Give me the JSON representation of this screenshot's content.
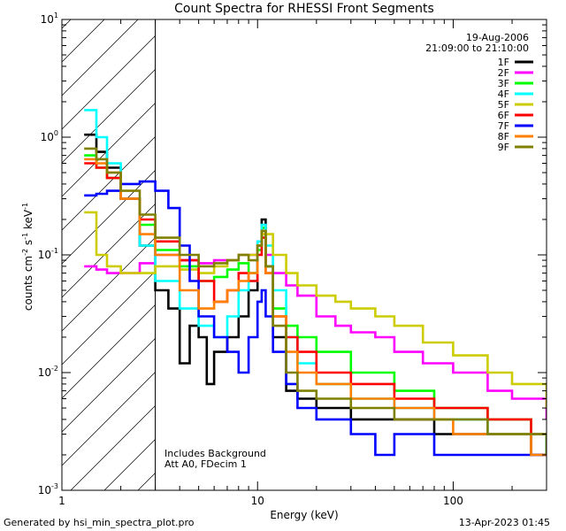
{
  "chart_data": {
    "type": "line",
    "title": "Count Spectra for RHESSI Front Segments",
    "xlabel": "Energy (keV)",
    "ylabel_base": "counts cm",
    "ylabel_exp1": "-2",
    "ylabel_mid1": " s",
    "ylabel_exp2": "-1",
    "ylabel_mid2": " keV",
    "ylabel_exp3": "-1",
    "x_scale": "log",
    "y_scale": "log",
    "xlim": [
      1,
      300
    ],
    "ylim": [
      0.001,
      10
    ],
    "x_ticks": [
      {
        "value": 1,
        "label": "1"
      },
      {
        "value": 10,
        "label": "10"
      },
      {
        "value": 100,
        "label": "100"
      }
    ],
    "y_ticks": [
      {
        "value": 10,
        "base": "10",
        "exp": "1"
      },
      {
        "value": 1,
        "base": "10",
        "exp": "0"
      },
      {
        "value": 0.1,
        "base": "10",
        "exp": "-1"
      },
      {
        "value": 0.01,
        "base": "10",
        "exp": "-2"
      },
      {
        "value": 0.001,
        "base": "10",
        "exp": "-3"
      }
    ],
    "hatched_region": {
      "from": 1,
      "to": 3
    },
    "date": "19-Aug-2006",
    "time_range": "21:09:00 to 21:10:00",
    "annotation_1": "Includes Background",
    "annotation_2": "Att A0, FDecim 1",
    "legend_placement": "top-right",
    "series": [
      {
        "name": "1F",
        "color": "#000000",
        "points": [
          [
            1.3,
            1.05
          ],
          [
            1.5,
            0.75
          ],
          [
            1.7,
            0.55
          ],
          [
            2.0,
            0.3
          ],
          [
            2.5,
            0.12
          ],
          [
            3.0,
            0.05
          ],
          [
            3.5,
            0.035
          ],
          [
            4.0,
            0.012
          ],
          [
            4.5,
            0.025
          ],
          [
            5.0,
            0.02
          ],
          [
            5.5,
            0.008
          ],
          [
            6.0,
            0.015
          ],
          [
            7.0,
            0.02
          ],
          [
            8.0,
            0.03
          ],
          [
            9.0,
            0.05
          ],
          [
            10.0,
            0.12
          ],
          [
            10.5,
            0.2
          ],
          [
            11.0,
            0.08
          ],
          [
            12.0,
            0.02
          ],
          [
            14.0,
            0.007
          ],
          [
            16.0,
            0.006
          ],
          [
            20.0,
            0.005
          ],
          [
            30.0,
            0.004
          ],
          [
            50.0,
            0.004
          ],
          [
            80.0,
            0.003
          ],
          [
            150.0,
            0.003
          ],
          [
            250.0,
            0.002
          ],
          [
            300.0,
            0.002
          ]
        ]
      },
      {
        "name": "2F",
        "color": "#ff00ff",
        "points": [
          [
            1.3,
            0.08
          ],
          [
            1.5,
            0.075
          ],
          [
            1.7,
            0.07
          ],
          [
            2.0,
            0.07
          ],
          [
            2.5,
            0.085
          ],
          [
            3.0,
            0.1
          ],
          [
            4.0,
            0.09
          ],
          [
            5.0,
            0.085
          ],
          [
            6.0,
            0.09
          ],
          [
            7.0,
            0.09
          ],
          [
            8.0,
            0.1
          ],
          [
            9.0,
            0.1
          ],
          [
            10.0,
            0.13
          ],
          [
            10.5,
            0.17
          ],
          [
            11.0,
            0.1
          ],
          [
            12.0,
            0.07
          ],
          [
            14.0,
            0.055
          ],
          [
            16.0,
            0.045
          ],
          [
            20.0,
            0.03
          ],
          [
            25.0,
            0.025
          ],
          [
            30.0,
            0.022
          ],
          [
            40.0,
            0.02
          ],
          [
            50.0,
            0.015
          ],
          [
            70.0,
            0.012
          ],
          [
            100.0,
            0.01
          ],
          [
            150.0,
            0.007
          ],
          [
            200.0,
            0.006
          ],
          [
            300.0,
            0.004
          ]
        ]
      },
      {
        "name": "3F",
        "color": "#00ff00",
        "points": [
          [
            1.3,
            0.7
          ],
          [
            1.5,
            0.55
          ],
          [
            1.7,
            0.45
          ],
          [
            2.0,
            0.3
          ],
          [
            2.5,
            0.18
          ],
          [
            3.0,
            0.11
          ],
          [
            4.0,
            0.08
          ],
          [
            5.0,
            0.06
          ],
          [
            6.0,
            0.065
          ],
          [
            7.0,
            0.075
          ],
          [
            8.0,
            0.085
          ],
          [
            9.0,
            0.07
          ],
          [
            10.0,
            0.11
          ],
          [
            10.5,
            0.17
          ],
          [
            11.0,
            0.08
          ],
          [
            12.0,
            0.035
          ],
          [
            14.0,
            0.025
          ],
          [
            16.0,
            0.02
          ],
          [
            20.0,
            0.015
          ],
          [
            30.0,
            0.01
          ],
          [
            50.0,
            0.007
          ],
          [
            80.0,
            0.005
          ],
          [
            150.0,
            0.004
          ],
          [
            250.0,
            0.003
          ],
          [
            300.0,
            0.002
          ]
        ]
      },
      {
        "name": "4F",
        "color": "#00ffff",
        "points": [
          [
            1.3,
            1.7
          ],
          [
            1.5,
            1.0
          ],
          [
            1.7,
            0.6
          ],
          [
            2.0,
            0.3
          ],
          [
            2.5,
            0.12
          ],
          [
            3.0,
            0.06
          ],
          [
            4.0,
            0.035
          ],
          [
            5.0,
            0.025
          ],
          [
            6.0,
            0.02
          ],
          [
            7.0,
            0.03
          ],
          [
            8.0,
            0.05
          ],
          [
            9.0,
            0.06
          ],
          [
            10.0,
            0.13
          ],
          [
            10.5,
            0.18
          ],
          [
            11.0,
            0.12
          ],
          [
            12.0,
            0.05
          ],
          [
            14.0,
            0.02
          ],
          [
            16.0,
            0.012
          ],
          [
            20.0,
            0.008
          ],
          [
            30.0,
            0.006
          ],
          [
            50.0,
            0.005
          ],
          [
            80.0,
            0.004
          ],
          [
            150.0,
            0.003
          ],
          [
            300.0,
            0.002
          ]
        ]
      },
      {
        "name": "5F",
        "color": "#cccc00",
        "points": [
          [
            1.3,
            0.23
          ],
          [
            1.5,
            0.1
          ],
          [
            1.7,
            0.08
          ],
          [
            2.0,
            0.07
          ],
          [
            2.5,
            0.07
          ],
          [
            3.0,
            0.08
          ],
          [
            4.0,
            0.075
          ],
          [
            5.0,
            0.07
          ],
          [
            6.0,
            0.08
          ],
          [
            7.0,
            0.09
          ],
          [
            8.0,
            0.1
          ],
          [
            9.0,
            0.1
          ],
          [
            10.0,
            0.12
          ],
          [
            10.5,
            0.15
          ],
          [
            11.0,
            0.15
          ],
          [
            12.0,
            0.1
          ],
          [
            14.0,
            0.07
          ],
          [
            16.0,
            0.055
          ],
          [
            20.0,
            0.045
          ],
          [
            25.0,
            0.04
          ],
          [
            30.0,
            0.035
          ],
          [
            40.0,
            0.03
          ],
          [
            50.0,
            0.025
          ],
          [
            70.0,
            0.018
          ],
          [
            100.0,
            0.014
          ],
          [
            150.0,
            0.01
          ],
          [
            200.0,
            0.008
          ],
          [
            300.0,
            0.005
          ]
        ]
      },
      {
        "name": "6F",
        "color": "#ff0000",
        "points": [
          [
            1.3,
            0.6
          ],
          [
            1.5,
            0.55
          ],
          [
            1.7,
            0.45
          ],
          [
            2.0,
            0.3
          ],
          [
            2.5,
            0.2
          ],
          [
            3.0,
            0.13
          ],
          [
            4.0,
            0.09
          ],
          [
            5.0,
            0.06
          ],
          [
            6.0,
            0.04
          ],
          [
            7.0,
            0.05
          ],
          [
            8.0,
            0.07
          ],
          [
            9.0,
            0.06
          ],
          [
            10.0,
            0.1
          ],
          [
            10.5,
            0.14
          ],
          [
            11.0,
            0.07
          ],
          [
            12.0,
            0.03
          ],
          [
            14.0,
            0.02
          ],
          [
            16.0,
            0.015
          ],
          [
            20.0,
            0.01
          ],
          [
            30.0,
            0.008
          ],
          [
            50.0,
            0.006
          ],
          [
            80.0,
            0.005
          ],
          [
            150.0,
            0.004
          ],
          [
            250.0,
            0.003
          ],
          [
            300.0,
            0.003
          ]
        ]
      },
      {
        "name": "7F",
        "color": "#0000ff",
        "points": [
          [
            1.3,
            0.32
          ],
          [
            1.5,
            0.33
          ],
          [
            1.7,
            0.35
          ],
          [
            2.0,
            0.4
          ],
          [
            2.5,
            0.42
          ],
          [
            3.0,
            0.35
          ],
          [
            3.5,
            0.25
          ],
          [
            4.0,
            0.12
          ],
          [
            4.5,
            0.06
          ],
          [
            5.0,
            0.03
          ],
          [
            6.0,
            0.02
          ],
          [
            7.0,
            0.015
          ],
          [
            8.0,
            0.01
          ],
          [
            9.0,
            0.02
          ],
          [
            10.0,
            0.04
          ],
          [
            10.5,
            0.05
          ],
          [
            11.0,
            0.03
          ],
          [
            12.0,
            0.015
          ],
          [
            14.0,
            0.008
          ],
          [
            16.0,
            0.005
          ],
          [
            20.0,
            0.004
          ],
          [
            30.0,
            0.003
          ],
          [
            40.0,
            0.002
          ],
          [
            50.0,
            0.003
          ],
          [
            80.0,
            0.002
          ],
          [
            150.0,
            0.002
          ],
          [
            300.0,
            0.002
          ]
        ]
      },
      {
        "name": "8F",
        "color": "#ff8000",
        "points": [
          [
            1.3,
            0.65
          ],
          [
            1.5,
            0.6
          ],
          [
            1.7,
            0.5
          ],
          [
            2.0,
            0.3
          ],
          [
            2.5,
            0.15
          ],
          [
            3.0,
            0.1
          ],
          [
            4.0,
            0.05
          ],
          [
            5.0,
            0.035
          ],
          [
            6.0,
            0.04
          ],
          [
            7.0,
            0.05
          ],
          [
            8.0,
            0.06
          ],
          [
            9.0,
            0.07
          ],
          [
            10.0,
            0.12
          ],
          [
            10.5,
            0.16
          ],
          [
            11.0,
            0.07
          ],
          [
            12.0,
            0.03
          ],
          [
            14.0,
            0.015
          ],
          [
            16.0,
            0.01
          ],
          [
            20.0,
            0.008
          ],
          [
            30.0,
            0.006
          ],
          [
            50.0,
            0.005
          ],
          [
            80.0,
            0.004
          ],
          [
            100.0,
            0.003
          ],
          [
            150.0,
            0.003
          ],
          [
            250.0,
            0.002
          ],
          [
            300.0,
            0.002
          ]
        ]
      },
      {
        "name": "9F",
        "color": "#808000",
        "points": [
          [
            1.3,
            0.8
          ],
          [
            1.5,
            0.65
          ],
          [
            1.7,
            0.5
          ],
          [
            2.0,
            0.35
          ],
          [
            2.5,
            0.22
          ],
          [
            3.0,
            0.14
          ],
          [
            4.0,
            0.1
          ],
          [
            5.0,
            0.08
          ],
          [
            6.0,
            0.085
          ],
          [
            7.0,
            0.09
          ],
          [
            8.0,
            0.1
          ],
          [
            9.0,
            0.09
          ],
          [
            10.0,
            0.12
          ],
          [
            10.5,
            0.16
          ],
          [
            11.0,
            0.08
          ],
          [
            12.0,
            0.025
          ],
          [
            14.0,
            0.01
          ],
          [
            16.0,
            0.007
          ],
          [
            20.0,
            0.006
          ],
          [
            30.0,
            0.005
          ],
          [
            50.0,
            0.004
          ],
          [
            80.0,
            0.004
          ],
          [
            150.0,
            0.003
          ],
          [
            250.0,
            0.003
          ],
          [
            300.0,
            0.002
          ]
        ]
      }
    ]
  },
  "footer": {
    "generated_by": "Generated by hsi_min_spectra_plot.pro",
    "timestamp": "13-Apr-2023 01:45"
  }
}
